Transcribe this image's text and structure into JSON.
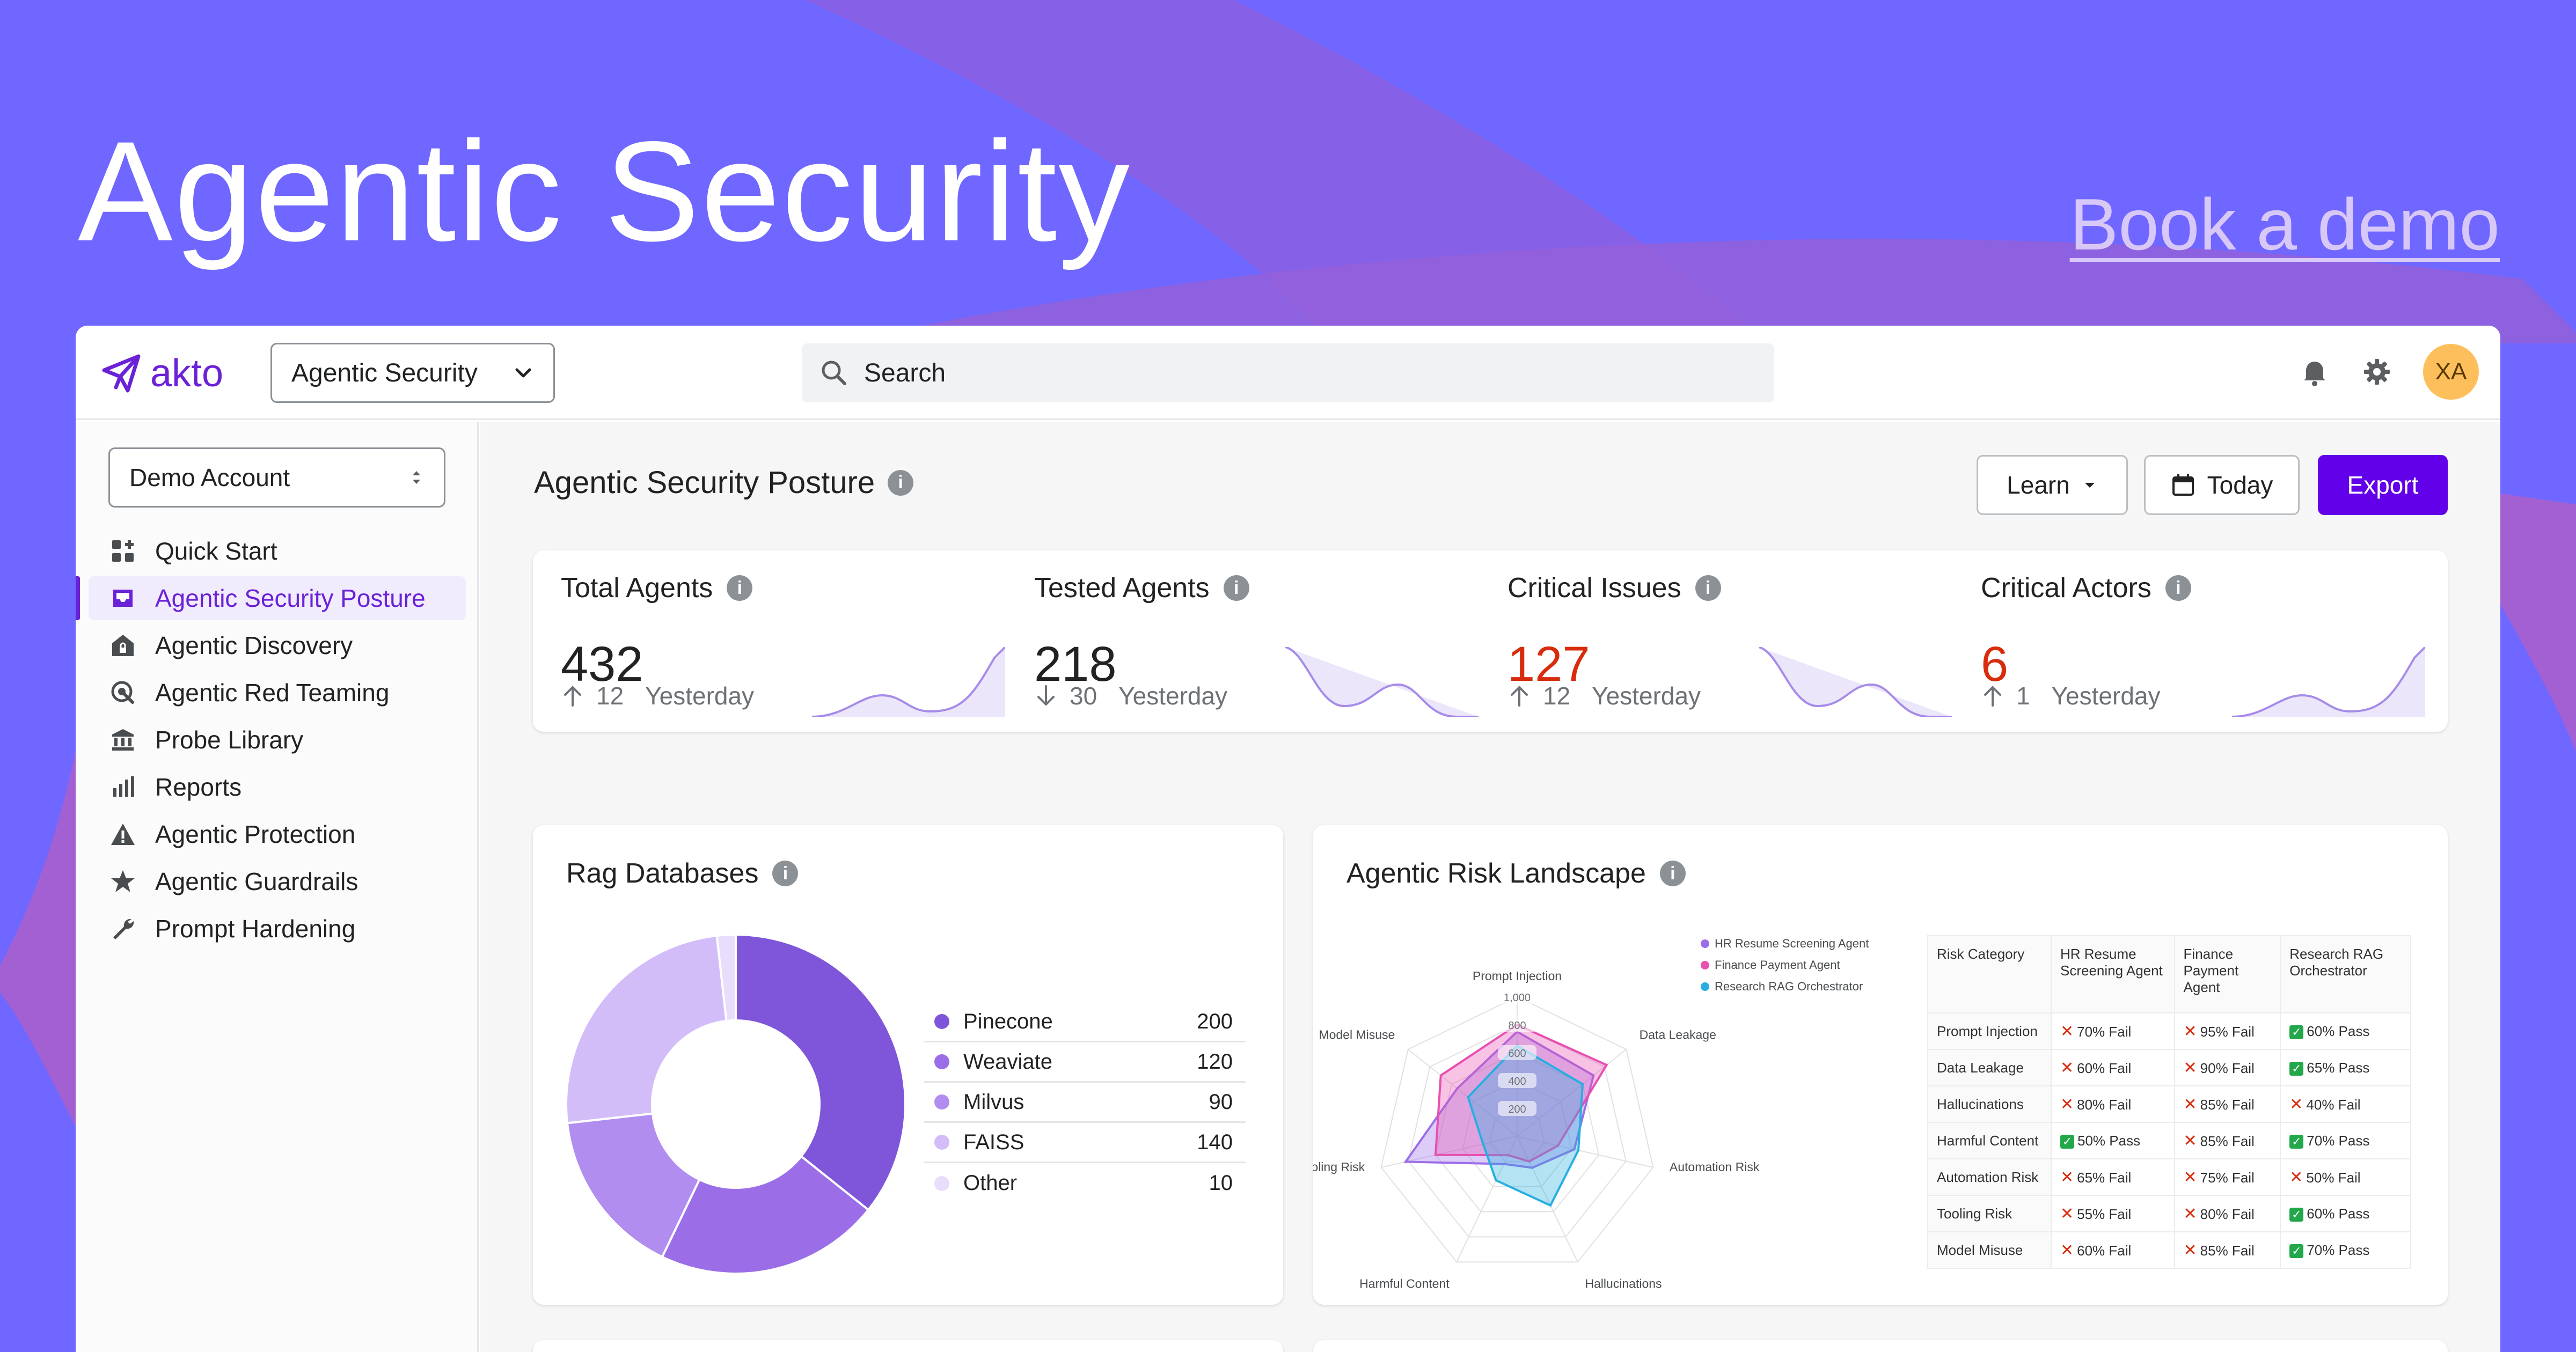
{
  "hero": {
    "title": "Agentic Security",
    "cta": "Book a demo"
  },
  "topbar": {
    "brand": "akto",
    "product_select": "Agentic Security",
    "search_placeholder": "Search",
    "avatar_initials": "XA"
  },
  "sidebar": {
    "account_select": "Demo Account",
    "items": [
      {
        "label": "Quick Start",
        "icon": "grid-plus-icon"
      },
      {
        "label": "Agentic Security Posture",
        "icon": "inbox-icon",
        "active": true
      },
      {
        "label": "Agentic Discovery",
        "icon": "house-lock-icon"
      },
      {
        "label": "Agentic Red Teaming",
        "icon": "target-icon"
      },
      {
        "label": "Probe Library",
        "icon": "bank-icon"
      },
      {
        "label": "Reports",
        "icon": "bar-chart-icon"
      },
      {
        "label": "Agentic Protection",
        "icon": "warning-icon"
      },
      {
        "label": "Agentic Guardrails",
        "icon": "star-icon"
      },
      {
        "label": "Prompt Hardening",
        "icon": "wrench-icon"
      }
    ]
  },
  "page": {
    "title": "Agentic Security Posture",
    "learn_label": "Learn",
    "today_label": "Today",
    "export_label": "Export"
  },
  "stats": [
    {
      "label": "Total Agents",
      "value": "432",
      "delta": "12",
      "direction": "up",
      "period": "Yesterday",
      "critical": false
    },
    {
      "label": "Tested Agents",
      "value": "218",
      "delta": "30",
      "direction": "down",
      "period": "Yesterday",
      "critical": false
    },
    {
      "label": "Critical Issues",
      "value": "127",
      "delta": "12",
      "direction": "up",
      "period": "Yesterday",
      "critical": true
    },
    {
      "label": "Critical Actors",
      "value": "6",
      "delta": "1",
      "direction": "up",
      "period": "Yesterday",
      "critical": true
    }
  ],
  "rag": {
    "title": "Rag Databases",
    "chart_data": {
      "type": "pie",
      "categories": [
        "Pinecone",
        "Weaviate",
        "Milvus",
        "FAISS",
        "Other"
      ],
      "values": [
        200,
        120,
        90,
        140,
        10
      ],
      "colors": [
        "#7f56d9",
        "#9b6ee8",
        "#b28df0",
        "#d3bdf8",
        "#e9ddfc"
      ]
    }
  },
  "risk": {
    "title": "Agentic Risk Landscape",
    "chart_data": {
      "type": "radar",
      "axes": [
        "Prompt Injection",
        "Data Leakage",
        "Automation Risk",
        "Hallucinations",
        "Harmful Content",
        "Tooling Risk",
        "Model Misuse"
      ],
      "ticks": [
        "200",
        "400",
        "600",
        "800",
        "1,000"
      ],
      "max": 1000,
      "series": [
        {
          "name": "HR Resume Screening Agent",
          "color": "#9b6ee8",
          "values": [
            750,
            700,
            420,
            250,
            220,
            820,
            550
          ]
        },
        {
          "name": "Finance Payment Agent",
          "color": "#e84fb1",
          "values": [
            800,
            820,
            300,
            200,
            150,
            600,
            700
          ]
        },
        {
          "name": "Research RAG Orchestrator",
          "color": "#27aee0",
          "values": [
            650,
            600,
            450,
            550,
            350,
            250,
            450
          ]
        }
      ]
    },
    "table": {
      "headers": [
        "Risk Category",
        "HR Resume Screening Agent",
        "Finance Payment Agent",
        "Research RAG Orchestrator"
      ],
      "rows": [
        {
          "cat": "Prompt Injection",
          "cells": [
            [
              "fail",
              "70% Fail"
            ],
            [
              "fail",
              "95% Fail"
            ],
            [
              "pass",
              "60% Pass"
            ]
          ]
        },
        {
          "cat": "Data Leakage",
          "cells": [
            [
              "fail",
              "60% Fail"
            ],
            [
              "fail",
              "90% Fail"
            ],
            [
              "pass",
              "65% Pass"
            ]
          ]
        },
        {
          "cat": "Hallucinations",
          "cells": [
            [
              "fail",
              "80% Fail"
            ],
            [
              "fail",
              "85% Fail"
            ],
            [
              "fail",
              "40% Fail"
            ]
          ]
        },
        {
          "cat": "Harmful Content",
          "cells": [
            [
              "pass",
              "50% Pass"
            ],
            [
              "fail",
              "85% Fail"
            ],
            [
              "pass",
              "70% Pass"
            ]
          ]
        },
        {
          "cat": "Automation Risk",
          "cells": [
            [
              "fail",
              "65% Fail"
            ],
            [
              "fail",
              "75% Fail"
            ],
            [
              "fail",
              "50% Fail"
            ]
          ]
        },
        {
          "cat": "Tooling Risk",
          "cells": [
            [
              "fail",
              "55% Fail"
            ],
            [
              "fail",
              "80% Fail"
            ],
            [
              "pass",
              "60% Pass"
            ]
          ]
        },
        {
          "cat": "Model Misuse",
          "cells": [
            [
              "fail",
              "60% Fail"
            ],
            [
              "fail",
              "85% Fail"
            ],
            [
              "pass",
              "70% Pass"
            ]
          ]
        }
      ]
    }
  },
  "colors": {
    "brand": "#6b21d6",
    "export": "#6200ea",
    "critical": "#d72c0d",
    "background": "#6f67ff"
  }
}
